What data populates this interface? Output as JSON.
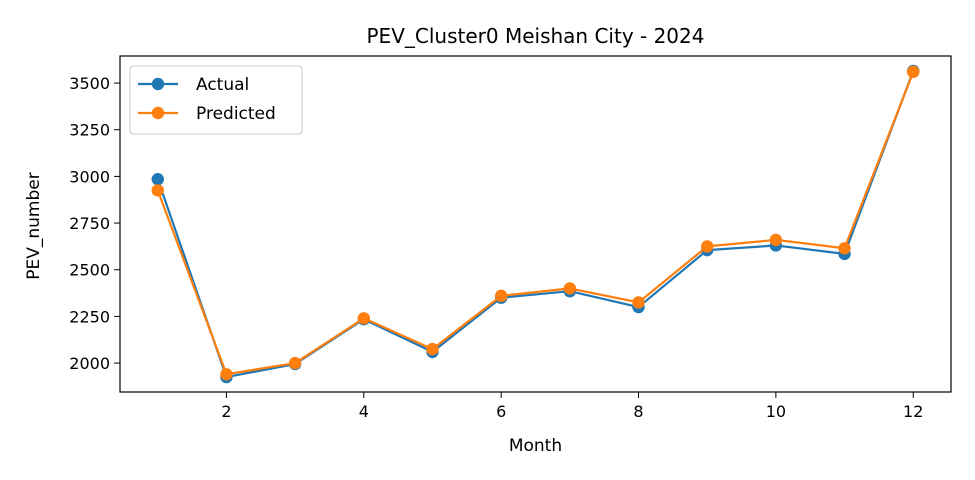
{
  "chart_data": {
    "type": "line",
    "title": "PEV_Cluster0 Meishan City - 2024",
    "xlabel": "Month",
    "ylabel": "PEV_number",
    "x": [
      1,
      2,
      3,
      4,
      5,
      6,
      7,
      8,
      9,
      10,
      11,
      12
    ],
    "xlim": [
      0.45,
      12.55
    ],
    "ylim": [
      1845,
      3645
    ],
    "xticks": [
      2,
      4,
      6,
      8,
      10,
      12
    ],
    "yticks": [
      2000,
      2250,
      2500,
      2750,
      3000,
      3250,
      3500
    ],
    "grid": false,
    "legend": "top-left",
    "series": [
      {
        "name": "Actual",
        "color": "#1f77b4",
        "values": [
          2985,
          1925,
          1995,
          2235,
          2060,
          2350,
          2385,
          2300,
          2605,
          2630,
          2585,
          3565
        ]
      },
      {
        "name": "Predicted",
        "color": "#ff7f0e",
        "values": [
          2925,
          1940,
          2000,
          2240,
          2075,
          2360,
          2400,
          2325,
          2625,
          2660,
          2615,
          3560
        ]
      }
    ]
  }
}
